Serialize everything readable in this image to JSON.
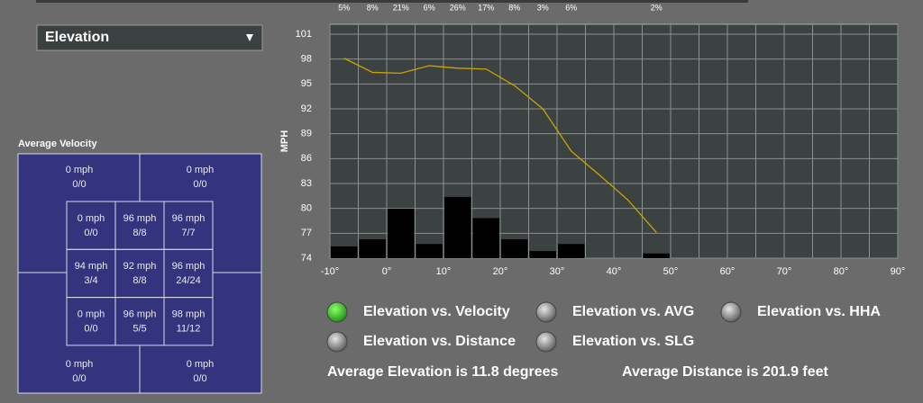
{
  "dropdown": {
    "label": "Elevation"
  },
  "zone_panel": {
    "title": "Average Velocity",
    "outer": [
      {
        "speed": "0 mph",
        "count": "0/0"
      },
      {
        "speed": "0 mph",
        "count": "0/0"
      },
      {
        "speed": "0 mph",
        "count": "0/0"
      },
      {
        "speed": "0 mph",
        "count": "0/0"
      }
    ],
    "inner": [
      [
        {
          "speed": "0 mph",
          "count": "0/0"
        },
        {
          "speed": "96 mph",
          "count": "8/8"
        },
        {
          "speed": "96 mph",
          "count": "7/7"
        }
      ],
      [
        {
          "speed": "94 mph",
          "count": "3/4"
        },
        {
          "speed": "92 mph",
          "count": "8/8"
        },
        {
          "speed": "96 mph",
          "count": "24/24"
        }
      ],
      [
        {
          "speed": "0 mph",
          "count": "0/0"
        },
        {
          "speed": "96 mph",
          "count": "5/5"
        },
        {
          "speed": "98 mph",
          "count": "11/12"
        }
      ]
    ]
  },
  "chart_data": {
    "type": "bar-line",
    "y_label": "MPH",
    "xlim": [
      -10,
      90
    ],
    "xticks": [
      {
        "value": -10,
        "label": "-10°"
      },
      {
        "value": 0,
        "label": "0°"
      },
      {
        "value": 10,
        "label": "10°"
      },
      {
        "value": 20,
        "label": "20°"
      },
      {
        "value": 30,
        "label": "30°"
      },
      {
        "value": 40,
        "label": "40°"
      },
      {
        "value": 50,
        "label": "50°"
      },
      {
        "value": 60,
        "label": "60°"
      },
      {
        "value": 70,
        "label": "70°"
      },
      {
        "value": 80,
        "label": "80°"
      },
      {
        "value": 90,
        "label": "90°"
      }
    ],
    "x_minor_ticks": [
      -5,
      5,
      15,
      25,
      35,
      45,
      55,
      65,
      75,
      85
    ],
    "ylim": [
      74,
      101
    ],
    "yticks": [
      74,
      77,
      80,
      83,
      86,
      89,
      92,
      95,
      98,
      101
    ],
    "y2lim": [
      0,
      95
    ],
    "grid": true,
    "bars": {
      "color": "#000000",
      "bins": [
        -10,
        -5,
        0,
        5,
        10,
        15,
        20,
        25,
        30,
        35,
        40,
        45,
        50
      ],
      "values": [
        5,
        8,
        21,
        6,
        26,
        17,
        8,
        3,
        6,
        null,
        null,
        2
      ],
      "value_labels": [
        "5%",
        "8%",
        "21%",
        "6%",
        "26%",
        "17%",
        "8%",
        "3%",
        "6%",
        null,
        null,
        "2%"
      ]
    },
    "line": {
      "color": "#c9a400",
      "x": [
        -7.5,
        -2.5,
        2.5,
        7.5,
        12.5,
        17.5,
        22.5,
        27.5,
        32.5,
        37.5,
        42.5,
        47.5
      ],
      "values": [
        98.1,
        96.4,
        96.3,
        97.2,
        96.9,
        96.8,
        94.8,
        92.0,
        86.9,
        84.0,
        81.0,
        77.1
      ]
    }
  },
  "options": [
    {
      "label": "Elevation vs. Velocity",
      "selected": true
    },
    {
      "label": "Elevation vs. AVG",
      "selected": false
    },
    {
      "label": "Elevation vs. HHA",
      "selected": false
    },
    {
      "label": "Elevation vs. Distance",
      "selected": false
    },
    {
      "label": "Elevation vs. SLG",
      "selected": false
    }
  ],
  "stats": [
    "Average Elevation is 11.8 degrees",
    "Average Distance is 201.9 feet"
  ]
}
